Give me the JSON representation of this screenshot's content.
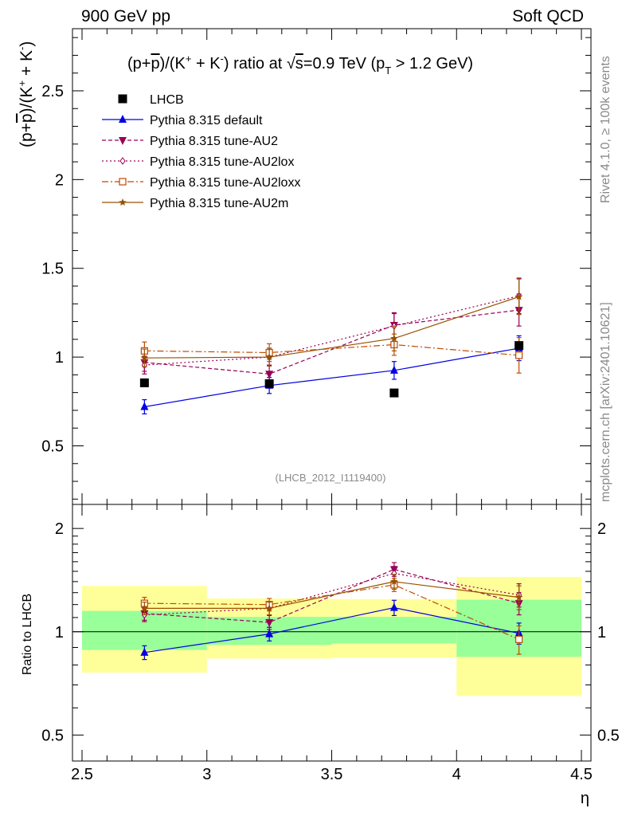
{
  "header": {
    "left": "900 GeV pp",
    "right": "Soft QCD"
  },
  "side_labels": {
    "rivet": "Rivet 4.1.0, ≥ 100k events",
    "mcplots": "mcplots.cern.ch [arXiv:2401.10621]"
  },
  "colors": {
    "data": "#000000",
    "default": "#0000e0",
    "AU2": "#990055",
    "AU2lox": "#990055",
    "AU2loxx": "#c04a00",
    "AU2m": "#995000",
    "band_inner": "#99ff99",
    "band_outer": "#ffff99"
  },
  "chart_data": [
    {
      "id": "main",
      "type": "line",
      "title_parts": {
        "pre": "(p+",
        "pbar": "p",
        "mid": ")/(K",
        "sup1": "+",
        "mid2": " + K",
        "sup2": "-",
        "post": ") ratio at ",
        "sqrt": "√",
        "s": "s",
        "energy": "=0.9 TeV (p",
        "sub": "T",
        "cut": " > 1.2 GeV)"
      },
      "ylabel_parts": {
        "pre": "(p+",
        "pbar": "p",
        "mid": ")/(K",
        "sup1": "+",
        "mid2": " + K",
        "sup2": "-",
        "post": ")"
      },
      "analysis_tag": "(LHCB_2012_I1119400)",
      "xlim": [
        2.5,
        4.5
      ],
      "ylim": [
        0.17,
        2.85
      ],
      "yticks": [
        0.5,
        1,
        1.5,
        2,
        2.5
      ],
      "ytick_labels": [
        "0.5",
        "1",
        "1.5",
        "2",
        "2.5"
      ],
      "legend_position": "top-left",
      "series": [
        {
          "key": "data",
          "name": "LHCB",
          "style": "square",
          "line": "none",
          "x": [
            2.75,
            3.25,
            3.75,
            4.25
          ],
          "y": [
            0.855,
            0.85,
            0.798,
            1.065
          ],
          "err": [
            0,
            0,
            0,
            0
          ]
        },
        {
          "key": "default",
          "name": "Pythia 8.315 default",
          "style": "triangle-up",
          "line": "solid",
          "x": [
            2.75,
            3.25,
            3.75,
            4.25
          ],
          "y": [
            0.72,
            0.84,
            0.925,
            1.05
          ],
          "err": [
            0.04,
            0.045,
            0.05,
            0.07
          ]
        },
        {
          "key": "AU2",
          "name": "Pythia 8.315 tune-AU2",
          "style": "triangle-down",
          "line": "dashed",
          "x": [
            2.75,
            3.25,
            3.75,
            4.25
          ],
          "y": [
            0.97,
            0.905,
            1.18,
            1.265
          ],
          "err": [
            0.05,
            0.05,
            0.07,
            0.09
          ]
        },
        {
          "key": "AU2lox",
          "name": "Pythia 8.315 tune-AU2lox",
          "style": "diamond-open",
          "line": "dotted",
          "x": [
            2.75,
            3.25,
            3.75,
            4.25
          ],
          "y": [
            0.955,
            1.0,
            1.175,
            1.345
          ],
          "err": [
            0.05,
            0.05,
            0.07,
            0.1
          ]
        },
        {
          "key": "AU2loxx",
          "name": "Pythia 8.315 tune-AU2loxx",
          "style": "square-open",
          "line": "dashdot",
          "x": [
            2.75,
            3.25,
            3.75,
            4.25
          ],
          "y": [
            1.035,
            1.025,
            1.07,
            1.01
          ],
          "err": [
            0.05,
            0.05,
            0.06,
            0.1
          ]
        },
        {
          "key": "AU2m",
          "name": "Pythia 8.315 tune-AU2m",
          "style": "star",
          "line": "solid",
          "x": [
            2.75,
            3.25,
            3.75,
            4.25
          ],
          "y": [
            0.995,
            1.0,
            1.105,
            1.34
          ],
          "err": [
            0.05,
            0.05,
            0.07,
            0.1
          ]
        }
      ]
    },
    {
      "id": "ratio",
      "type": "line",
      "ylabel": "Ratio to LHCB",
      "xlabel": "η",
      "xlim": [
        2.5,
        4.5
      ],
      "ylim": [
        0.42,
        2.35
      ],
      "yscale": "log",
      "yticks": [
        0.5,
        1,
        2
      ],
      "ytick_labels": [
        "0.5",
        "1",
        "2"
      ],
      "xticks": [
        2.5,
        3,
        3.5,
        4,
        4.5
      ],
      "xtick_labels": [
        "2.5",
        "3",
        "3.5",
        "4",
        "4.5"
      ],
      "reference": 1,
      "bands": [
        {
          "x0": 2.5,
          "x1": 3.0,
          "inner": [
            0.885,
            1.15
          ],
          "outer": [
            0.76,
            1.36
          ]
        },
        {
          "x0": 3.0,
          "x1": 3.5,
          "inner": [
            0.915,
            1.105
          ],
          "outer": [
            0.835,
            1.25
          ]
        },
        {
          "x0": 3.5,
          "x1": 4.0,
          "inner": [
            0.925,
            1.105
          ],
          "outer": [
            0.84,
            1.245
          ]
        },
        {
          "x0": 4.0,
          "x1": 4.5,
          "inner": [
            0.845,
            1.24
          ],
          "outer": [
            0.65,
            1.445
          ]
        }
      ],
      "series": [
        {
          "key": "default",
          "x": [
            2.75,
            3.25,
            3.75,
            4.25
          ],
          "y": [
            0.87,
            0.985,
            1.175,
            0.99
          ],
          "err": [
            0.04,
            0.045,
            0.06,
            0.07
          ]
        },
        {
          "key": "AU2",
          "x": [
            2.75,
            3.25,
            3.75,
            4.25
          ],
          "y": [
            1.13,
            1.065,
            1.52,
            1.21
          ],
          "err": [
            0.05,
            0.05,
            0.07,
            0.09
          ]
        },
        {
          "key": "AU2lox",
          "x": [
            2.75,
            3.25,
            3.75,
            4.25
          ],
          "y": [
            1.12,
            1.17,
            1.48,
            1.28
          ],
          "err": [
            0.05,
            0.05,
            0.07,
            0.1
          ]
        },
        {
          "key": "AU2loxx",
          "x": [
            2.75,
            3.25,
            3.75,
            4.25
          ],
          "y": [
            1.21,
            1.2,
            1.37,
            0.95
          ],
          "err": [
            0.05,
            0.05,
            0.06,
            0.09
          ]
        },
        {
          "key": "AU2m",
          "x": [
            2.75,
            3.25,
            3.75,
            4.25
          ],
          "y": [
            1.17,
            1.17,
            1.4,
            1.26
          ],
          "err": [
            0.05,
            0.05,
            0.07,
            0.1
          ]
        }
      ]
    }
  ]
}
